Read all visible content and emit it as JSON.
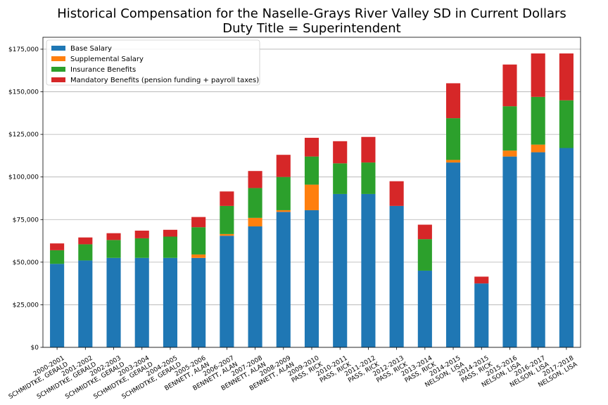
{
  "chart_data": {
    "type": "bar",
    "stacked": true,
    "title": "Historical Compensation for the Naselle-Grays River Valley SD in Current Dollars",
    "subtitle": "Duty Title = Superintendent",
    "xlabel": "",
    "ylabel": "",
    "ylim": [
      0,
      182000
    ],
    "yticks": [
      0,
      25000,
      50000,
      75000,
      100000,
      125000,
      150000,
      175000
    ],
    "ytick_labels": [
      "$0",
      "$25,000",
      "$50,000",
      "$75,000",
      "$100,000",
      "$125,000",
      "$150,000",
      "$175,000"
    ],
    "grid": "horizontal",
    "legend_position": "top-left",
    "categories": [
      [
        "2000-2001",
        "SCHMIDTKE, GERALD"
      ],
      [
        "2001-2002",
        "SCHMIDTKE, GERALD"
      ],
      [
        "2002-2003",
        "SCHMIDTKE, GERALD"
      ],
      [
        "2003-2004",
        "SCHMIDTKE, GERALD"
      ],
      [
        "2004-2005",
        "SCHMIDTKE, GERALD"
      ],
      [
        "2005-2006",
        "BENNETT, ALAN"
      ],
      [
        "2006-2007",
        "BENNETT, ALAN"
      ],
      [
        "2007-2008",
        "BENNETT, ALAN"
      ],
      [
        "2008-2009",
        "BENNETT, ALAN"
      ],
      [
        "2009-2010",
        "PASS, RICK"
      ],
      [
        "2010-2011",
        "PASS, RICK"
      ],
      [
        "2011-2012",
        "PASS, RICK"
      ],
      [
        "2012-2013",
        "PASS, RICK"
      ],
      [
        "2013-2014",
        "PASS, RICK"
      ],
      [
        "2014-2015",
        "NELSON, LISA"
      ],
      [
        "2014-2015",
        "PASS, RICK"
      ],
      [
        "2015-2016",
        "NELSON, LISA"
      ],
      [
        "2016-2017",
        "NELSON, LISA"
      ],
      [
        "2017-2018",
        "NELSON, LISA"
      ]
    ],
    "series": [
      {
        "name": "Base Salary",
        "color": "#1f77b4",
        "values": [
          49000,
          51000,
          52500,
          52500,
          52500,
          52500,
          65500,
          71000,
          79500,
          80500,
          90000,
          90000,
          83000,
          45000,
          108500,
          37500,
          112000,
          114500,
          117000
        ]
      },
      {
        "name": "Supplemental Salary",
        "color": "#ff7f0e",
        "values": [
          0,
          0,
          0,
          0,
          0,
          2000,
          1000,
          5000,
          1000,
          15000,
          0,
          0,
          0,
          0,
          1500,
          0,
          3500,
          4500,
          0
        ]
      },
      {
        "name": "Insurance Benefits",
        "color": "#2ca02c",
        "values": [
          8000,
          9500,
          10500,
          11500,
          12500,
          16000,
          16500,
          17500,
          19500,
          16500,
          18000,
          18500,
          0,
          18500,
          24500,
          0,
          26000,
          28000,
          28000
        ]
      },
      {
        "name": "Mandatory Benefits (pension funding + payroll taxes)",
        "color": "#d62728",
        "values": [
          4000,
          4000,
          4000,
          4500,
          4000,
          6000,
          8500,
          10000,
          13000,
          11000,
          13000,
          15000,
          14500,
          8500,
          20500,
          4000,
          24500,
          25500,
          27500
        ]
      }
    ]
  }
}
